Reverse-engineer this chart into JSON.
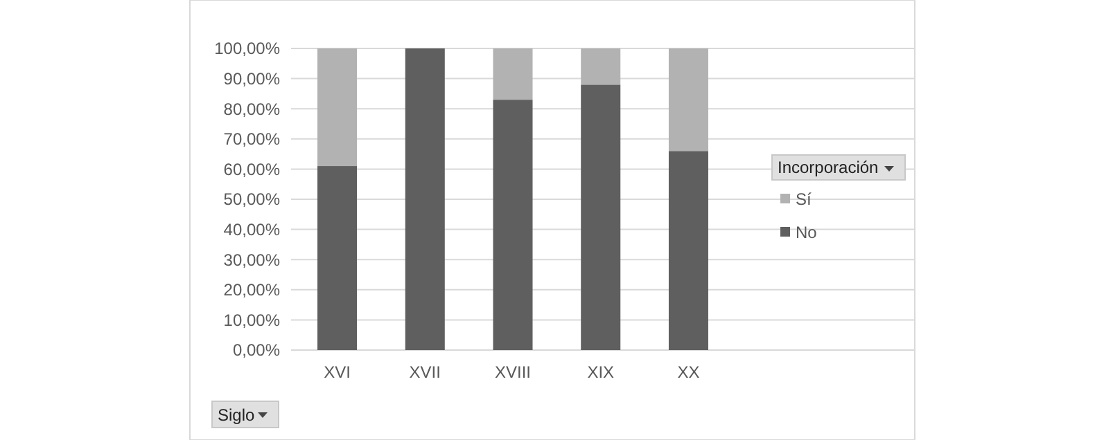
{
  "chart_data": {
    "type": "bar",
    "stacked": true,
    "categories": [
      "XVI",
      "XVII",
      "XVIII",
      "XIX",
      "XX"
    ],
    "series": [
      {
        "name": "No",
        "color": "#5f5f5f",
        "values": [
          61,
          100,
          83,
          88,
          66
        ]
      },
      {
        "name": "Sí",
        "color": "#b2b2b2",
        "values": [
          39,
          0,
          17,
          12,
          34
        ]
      }
    ],
    "ylim": [
      0,
      100
    ],
    "yticks": [
      {
        "value": 0,
        "label": "0,00%"
      },
      {
        "value": 10,
        "label": "10,00%"
      },
      {
        "value": 20,
        "label": "20,00%"
      },
      {
        "value": 30,
        "label": "30,00%"
      },
      {
        "value": 40,
        "label": "40,00%"
      },
      {
        "value": 50,
        "label": "50,00%"
      },
      {
        "value": 60,
        "label": "60,00%"
      },
      {
        "value": 70,
        "label": "70,00%"
      },
      {
        "value": 80,
        "label": "80,00%"
      },
      {
        "value": 90,
        "label": "90,00%"
      },
      {
        "value": 100,
        "label": "100,00%"
      }
    ],
    "grid": "y",
    "legend": "right",
    "legend_title": "Incorporación",
    "xlabel": "Siglo"
  }
}
